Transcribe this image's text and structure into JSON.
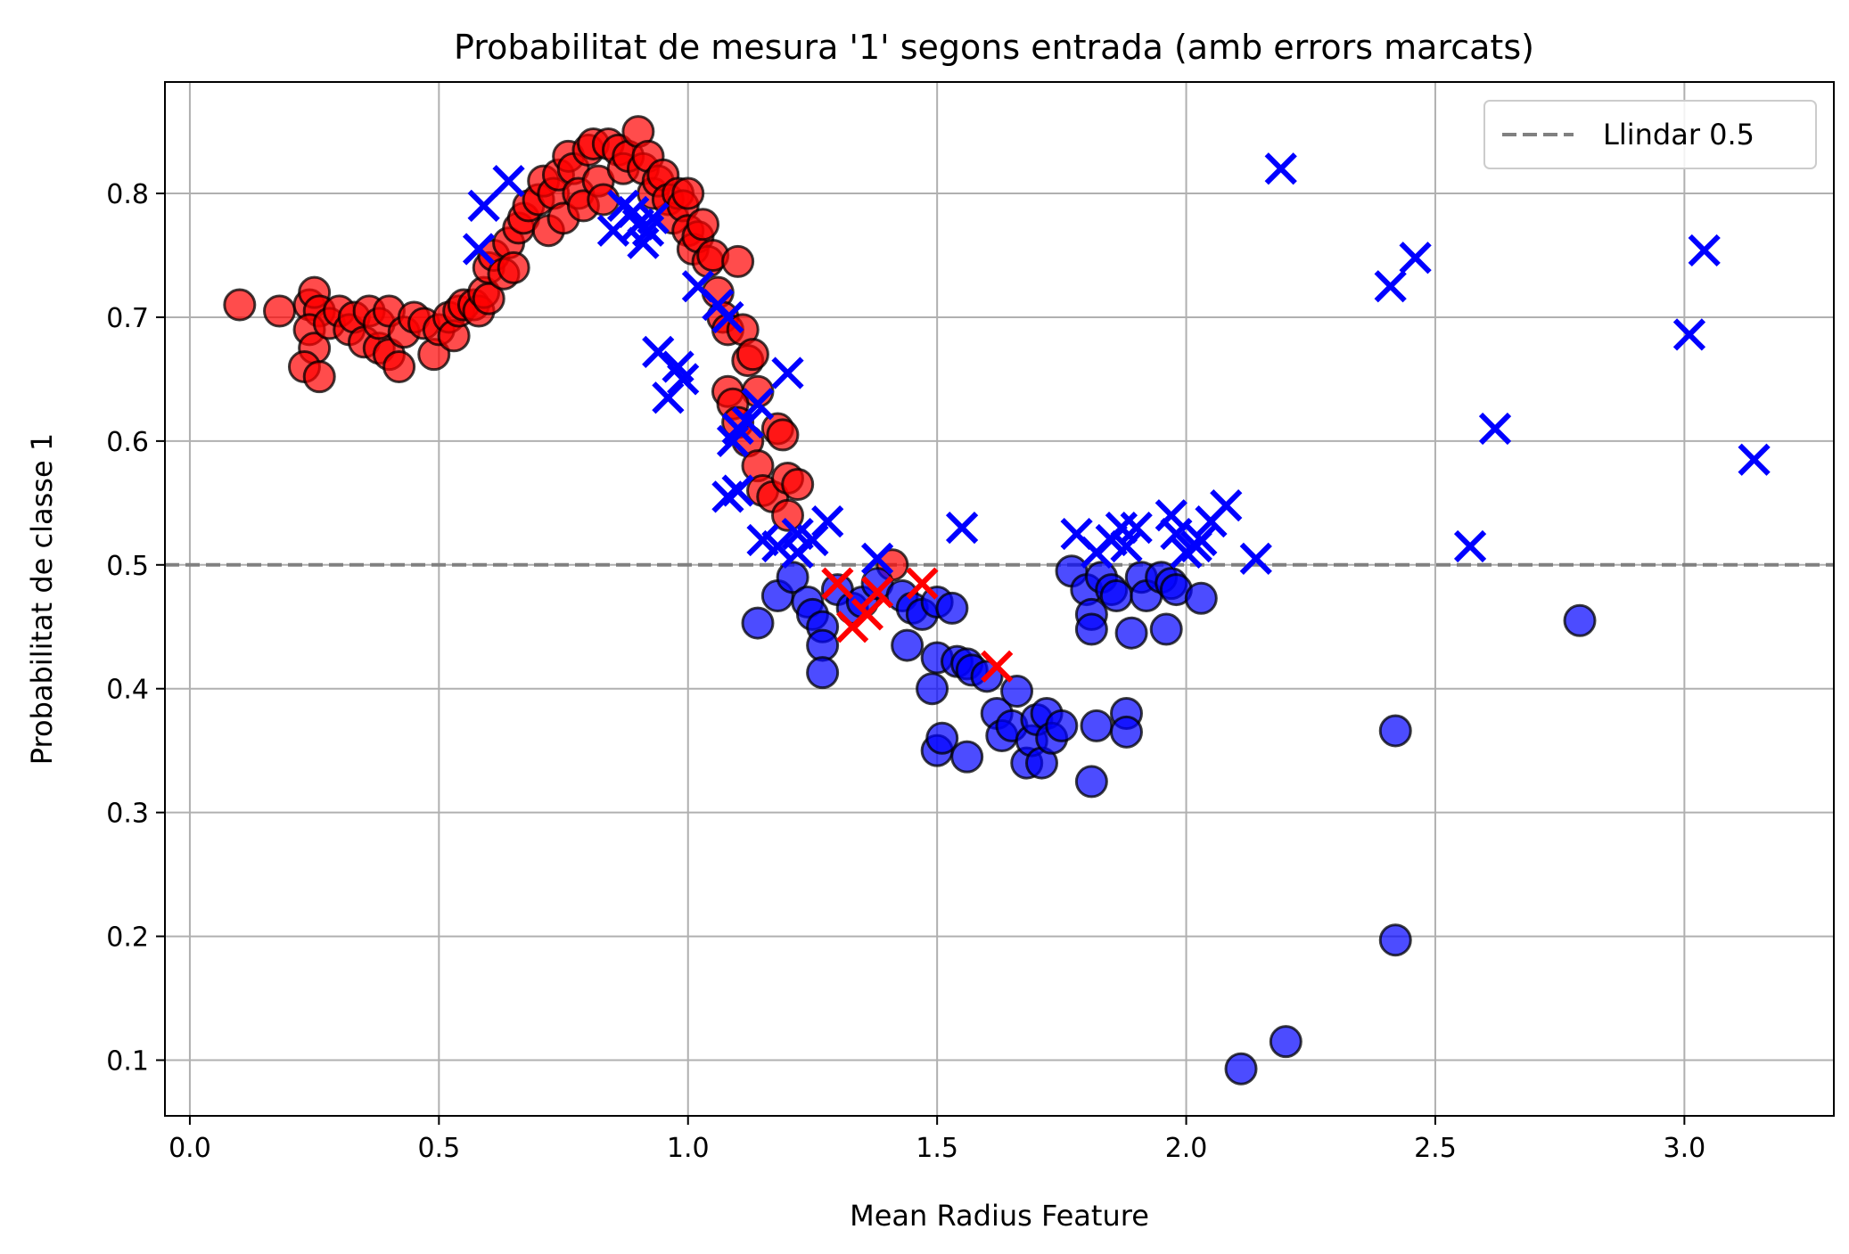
{
  "chart_data": {
    "type": "scatter",
    "title": "Probabilitat de mesura '1' segons entrada (amb errors marcats)",
    "xlabel": "Mean Radius Feature",
    "ylabel": "Probabilitat de classe 1",
    "xlim": [
      -0.05,
      3.3
    ],
    "ylim": [
      0.055,
      0.89
    ],
    "xticks": [
      0.0,
      0.5,
      1.0,
      1.5,
      2.0,
      2.5,
      3.0
    ],
    "xtick_labels": [
      "0.0",
      "0.5",
      "1.0",
      "1.5",
      "2.0",
      "2.5",
      "3.0"
    ],
    "yticks": [
      0.1,
      0.2,
      0.3,
      0.4,
      0.5,
      0.6,
      0.7,
      0.8
    ],
    "ytick_labels": [
      "0.1",
      "0.2",
      "0.3",
      "0.4",
      "0.5",
      "0.6",
      "0.7",
      "0.8"
    ],
    "grid": true,
    "legend": {
      "position": "top-right",
      "entries": [
        "Llindar 0.5"
      ]
    },
    "threshold": {
      "value": 0.5,
      "label": "Llindar 0.5",
      "color": "#808080",
      "style": "dashed"
    },
    "colors": {
      "class1": "#ff0000",
      "class0": "#0000ff",
      "edge": "#000000",
      "grid": "#b0b0b0"
    },
    "series": [
      {
        "marker": "circle",
        "color": "#ff0000",
        "points": [
          [
            0.1,
            0.71
          ],
          [
            0.18,
            0.705
          ],
          [
            0.24,
            0.71
          ],
          [
            0.25,
            0.72
          ],
          [
            0.26,
            0.705
          ],
          [
            0.24,
            0.69
          ],
          [
            0.25,
            0.675
          ],
          [
            0.23,
            0.66
          ],
          [
            0.26,
            0.652
          ],
          [
            0.28,
            0.695
          ],
          [
            0.3,
            0.705
          ],
          [
            0.32,
            0.69
          ],
          [
            0.33,
            0.7
          ],
          [
            0.35,
            0.68
          ],
          [
            0.36,
            0.705
          ],
          [
            0.38,
            0.675
          ],
          [
            0.38,
            0.695
          ],
          [
            0.4,
            0.67
          ],
          [
            0.4,
            0.705
          ],
          [
            0.42,
            0.66
          ],
          [
            0.43,
            0.688
          ],
          [
            0.45,
            0.7
          ],
          [
            0.47,
            0.695
          ],
          [
            0.49,
            0.67
          ],
          [
            0.5,
            0.69
          ],
          [
            0.52,
            0.7
          ],
          [
            0.53,
            0.685
          ],
          [
            0.54,
            0.705
          ],
          [
            0.55,
            0.71
          ],
          [
            0.57,
            0.71
          ],
          [
            0.58,
            0.705
          ],
          [
            0.59,
            0.72
          ],
          [
            0.6,
            0.715
          ],
          [
            0.6,
            0.74
          ],
          [
            0.61,
            0.75
          ],
          [
            0.63,
            0.735
          ],
          [
            0.64,
            0.76
          ],
          [
            0.65,
            0.74
          ],
          [
            0.66,
            0.772
          ],
          [
            0.67,
            0.78
          ],
          [
            0.68,
            0.79
          ],
          [
            0.7,
            0.795
          ],
          [
            0.71,
            0.81
          ],
          [
            0.72,
            0.77
          ],
          [
            0.73,
            0.8
          ],
          [
            0.74,
            0.815
          ],
          [
            0.75,
            0.78
          ],
          [
            0.76,
            0.83
          ],
          [
            0.77,
            0.82
          ],
          [
            0.78,
            0.8
          ],
          [
            0.79,
            0.79
          ],
          [
            0.8,
            0.835
          ],
          [
            0.81,
            0.84
          ],
          [
            0.82,
            0.81
          ],
          [
            0.83,
            0.795
          ],
          [
            0.84,
            0.84
          ],
          [
            0.86,
            0.835
          ],
          [
            0.87,
            0.82
          ],
          [
            0.88,
            0.83
          ],
          [
            0.9,
            0.85
          ],
          [
            0.91,
            0.82
          ],
          [
            0.92,
            0.83
          ],
          [
            0.93,
            0.8
          ],
          [
            0.94,
            0.81
          ],
          [
            0.95,
            0.815
          ],
          [
            0.96,
            0.795
          ],
          [
            0.97,
            0.78
          ],
          [
            0.98,
            0.8
          ],
          [
            0.99,
            0.79
          ],
          [
            1.0,
            0.8
          ],
          [
            1.0,
            0.77
          ],
          [
            1.01,
            0.755
          ],
          [
            1.02,
            0.765
          ],
          [
            1.03,
            0.775
          ],
          [
            1.04,
            0.745
          ],
          [
            1.05,
            0.75
          ],
          [
            1.06,
            0.72
          ],
          [
            1.07,
            0.7
          ],
          [
            1.08,
            0.69
          ],
          [
            1.1,
            0.745
          ],
          [
            1.11,
            0.69
          ],
          [
            1.12,
            0.665
          ],
          [
            1.13,
            0.67
          ],
          [
            1.14,
            0.64
          ],
          [
            1.08,
            0.64
          ],
          [
            1.09,
            0.63
          ],
          [
            1.1,
            0.615
          ],
          [
            1.12,
            0.6
          ],
          [
            1.14,
            0.58
          ],
          [
            1.15,
            0.56
          ],
          [
            1.17,
            0.555
          ],
          [
            1.18,
            0.61
          ],
          [
            1.19,
            0.605
          ],
          [
            1.2,
            0.57
          ],
          [
            1.22,
            0.565
          ],
          [
            1.2,
            0.54
          ],
          [
            1.41,
            0.5
          ]
        ]
      },
      {
        "marker": "circle",
        "color": "#0000ff",
        "points": [
          [
            1.14,
            0.453
          ],
          [
            1.18,
            0.475
          ],
          [
            1.21,
            0.49
          ],
          [
            1.24,
            0.47
          ],
          [
            1.25,
            0.46
          ],
          [
            1.27,
            0.45
          ],
          [
            1.27,
            0.435
          ],
          [
            1.27,
            0.413
          ],
          [
            1.3,
            0.48
          ],
          [
            1.33,
            0.465
          ],
          [
            1.35,
            0.47
          ],
          [
            1.38,
            0.485
          ],
          [
            1.43,
            0.475
          ],
          [
            1.45,
            0.465
          ],
          [
            1.44,
            0.435
          ],
          [
            1.47,
            0.46
          ],
          [
            1.5,
            0.47
          ],
          [
            1.53,
            0.465
          ],
          [
            1.5,
            0.425
          ],
          [
            1.49,
            0.4
          ],
          [
            1.5,
            0.35
          ],
          [
            1.51,
            0.36
          ],
          [
            1.54,
            0.422
          ],
          [
            1.56,
            0.42
          ],
          [
            1.56,
            0.345
          ],
          [
            1.57,
            0.415
          ],
          [
            1.6,
            0.41
          ],
          [
            1.62,
            0.38
          ],
          [
            1.63,
            0.362
          ],
          [
            1.65,
            0.37
          ],
          [
            1.66,
            0.398
          ],
          [
            1.68,
            0.34
          ],
          [
            1.69,
            0.358
          ],
          [
            1.7,
            0.375
          ],
          [
            1.71,
            0.34
          ],
          [
            1.72,
            0.38
          ],
          [
            1.73,
            0.36
          ],
          [
            1.75,
            0.37
          ],
          [
            1.77,
            0.495
          ],
          [
            1.8,
            0.48
          ],
          [
            1.81,
            0.46
          ],
          [
            1.81,
            0.448
          ],
          [
            1.82,
            0.37
          ],
          [
            1.83,
            0.49
          ],
          [
            1.85,
            0.48
          ],
          [
            1.86,
            0.475
          ],
          [
            1.88,
            0.38
          ],
          [
            1.88,
            0.365
          ],
          [
            1.89,
            0.445
          ],
          [
            1.91,
            0.49
          ],
          [
            1.92,
            0.475
          ],
          [
            1.95,
            0.49
          ],
          [
            1.96,
            0.448
          ],
          [
            1.97,
            0.485
          ],
          [
            1.98,
            0.48
          ],
          [
            2.03,
            0.473
          ],
          [
            1.81,
            0.325
          ],
          [
            2.11,
            0.093
          ],
          [
            2.2,
            0.115
          ],
          [
            2.42,
            0.366
          ],
          [
            2.42,
            0.197
          ],
          [
            2.79,
            0.455
          ]
        ]
      },
      {
        "marker": "x",
        "color": "#0000ff",
        "points": [
          [
            0.59,
            0.79
          ],
          [
            0.58,
            0.755
          ],
          [
            0.64,
            0.81
          ],
          [
            0.87,
            0.79
          ],
          [
            0.85,
            0.77
          ],
          [
            0.89,
            0.785
          ],
          [
            0.9,
            0.775
          ],
          [
            0.91,
            0.76
          ],
          [
            0.92,
            0.77
          ],
          [
            0.93,
            0.78
          ],
          [
            1.02,
            0.725
          ],
          [
            1.06,
            0.71
          ],
          [
            1.08,
            0.7
          ],
          [
            0.94,
            0.672
          ],
          [
            0.98,
            0.66
          ],
          [
            0.96,
            0.635
          ],
          [
            0.99,
            0.65
          ],
          [
            1.1,
            0.61
          ],
          [
            1.09,
            0.6
          ],
          [
            1.12,
            0.615
          ],
          [
            1.14,
            0.63
          ],
          [
            1.2,
            0.655
          ],
          [
            1.08,
            0.555
          ],
          [
            1.1,
            0.56
          ],
          [
            1.15,
            0.52
          ],
          [
            1.18,
            0.515
          ],
          [
            1.22,
            0.525
          ],
          [
            1.25,
            0.52
          ],
          [
            1.28,
            0.535
          ],
          [
            1.22,
            0.51
          ],
          [
            1.38,
            0.505
          ],
          [
            1.55,
            0.53
          ],
          [
            1.78,
            0.525
          ],
          [
            1.82,
            0.51
          ],
          [
            1.85,
            0.52
          ],
          [
            1.87,
            0.53
          ],
          [
            1.88,
            0.515
          ],
          [
            1.9,
            0.53
          ],
          [
            1.97,
            0.54
          ],
          [
            1.98,
            0.525
          ],
          [
            2.0,
            0.51
          ],
          [
            2.02,
            0.515
          ],
          [
            2.03,
            0.52
          ],
          [
            2.05,
            0.535
          ],
          [
            2.08,
            0.548
          ],
          [
            2.14,
            0.505
          ],
          [
            2.19,
            0.82
          ],
          [
            2.41,
            0.725
          ],
          [
            2.46,
            0.748
          ],
          [
            2.57,
            0.515
          ],
          [
            2.62,
            0.61
          ],
          [
            3.01,
            0.686
          ],
          [
            3.04,
            0.754
          ],
          [
            3.14,
            0.585
          ]
        ]
      },
      {
        "marker": "x",
        "color": "#ff0000",
        "points": [
          [
            1.3,
            0.485
          ],
          [
            1.33,
            0.45
          ],
          [
            1.36,
            0.46
          ],
          [
            1.38,
            0.478
          ],
          [
            1.47,
            0.485
          ],
          [
            1.62,
            0.418
          ]
        ]
      }
    ]
  }
}
